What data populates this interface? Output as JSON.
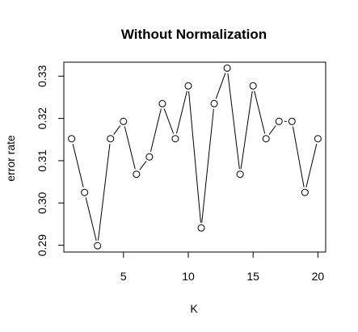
{
  "chart_data": {
    "type": "line",
    "title": "Without Normalization",
    "xlabel": "K",
    "ylabel": "error rate",
    "xlim": [
      0.4,
      20.6
    ],
    "ylim": [
      0.2884,
      0.3333
    ],
    "xticks": [
      5,
      10,
      15,
      20
    ],
    "yticks": [
      0.29,
      0.3,
      0.31,
      0.32,
      0.33
    ],
    "xtick_labels": [
      "5",
      "10",
      "15",
      "20"
    ],
    "ytick_labels": [
      "0.29",
      "0.30",
      "0.31",
      "0.32",
      "0.33"
    ],
    "grid": false,
    "legend": false,
    "series": [
      {
        "marker": "open-circle",
        "color": "#000000",
        "x": [
          1,
          2,
          3,
          4,
          5,
          6,
          7,
          8,
          9,
          10,
          11,
          12,
          13,
          14,
          15,
          16,
          17,
          18,
          19,
          20
        ],
        "y": [
          0.3152,
          0.3025,
          0.2899,
          0.3152,
          0.3193,
          0.3068,
          0.3109,
          0.3235,
          0.3152,
          0.3277,
          0.2941,
          0.3235,
          0.3319,
          0.3068,
          0.3277,
          0.3152,
          0.3193,
          0.3193,
          0.3025,
          0.3152
        ]
      }
    ]
  }
}
